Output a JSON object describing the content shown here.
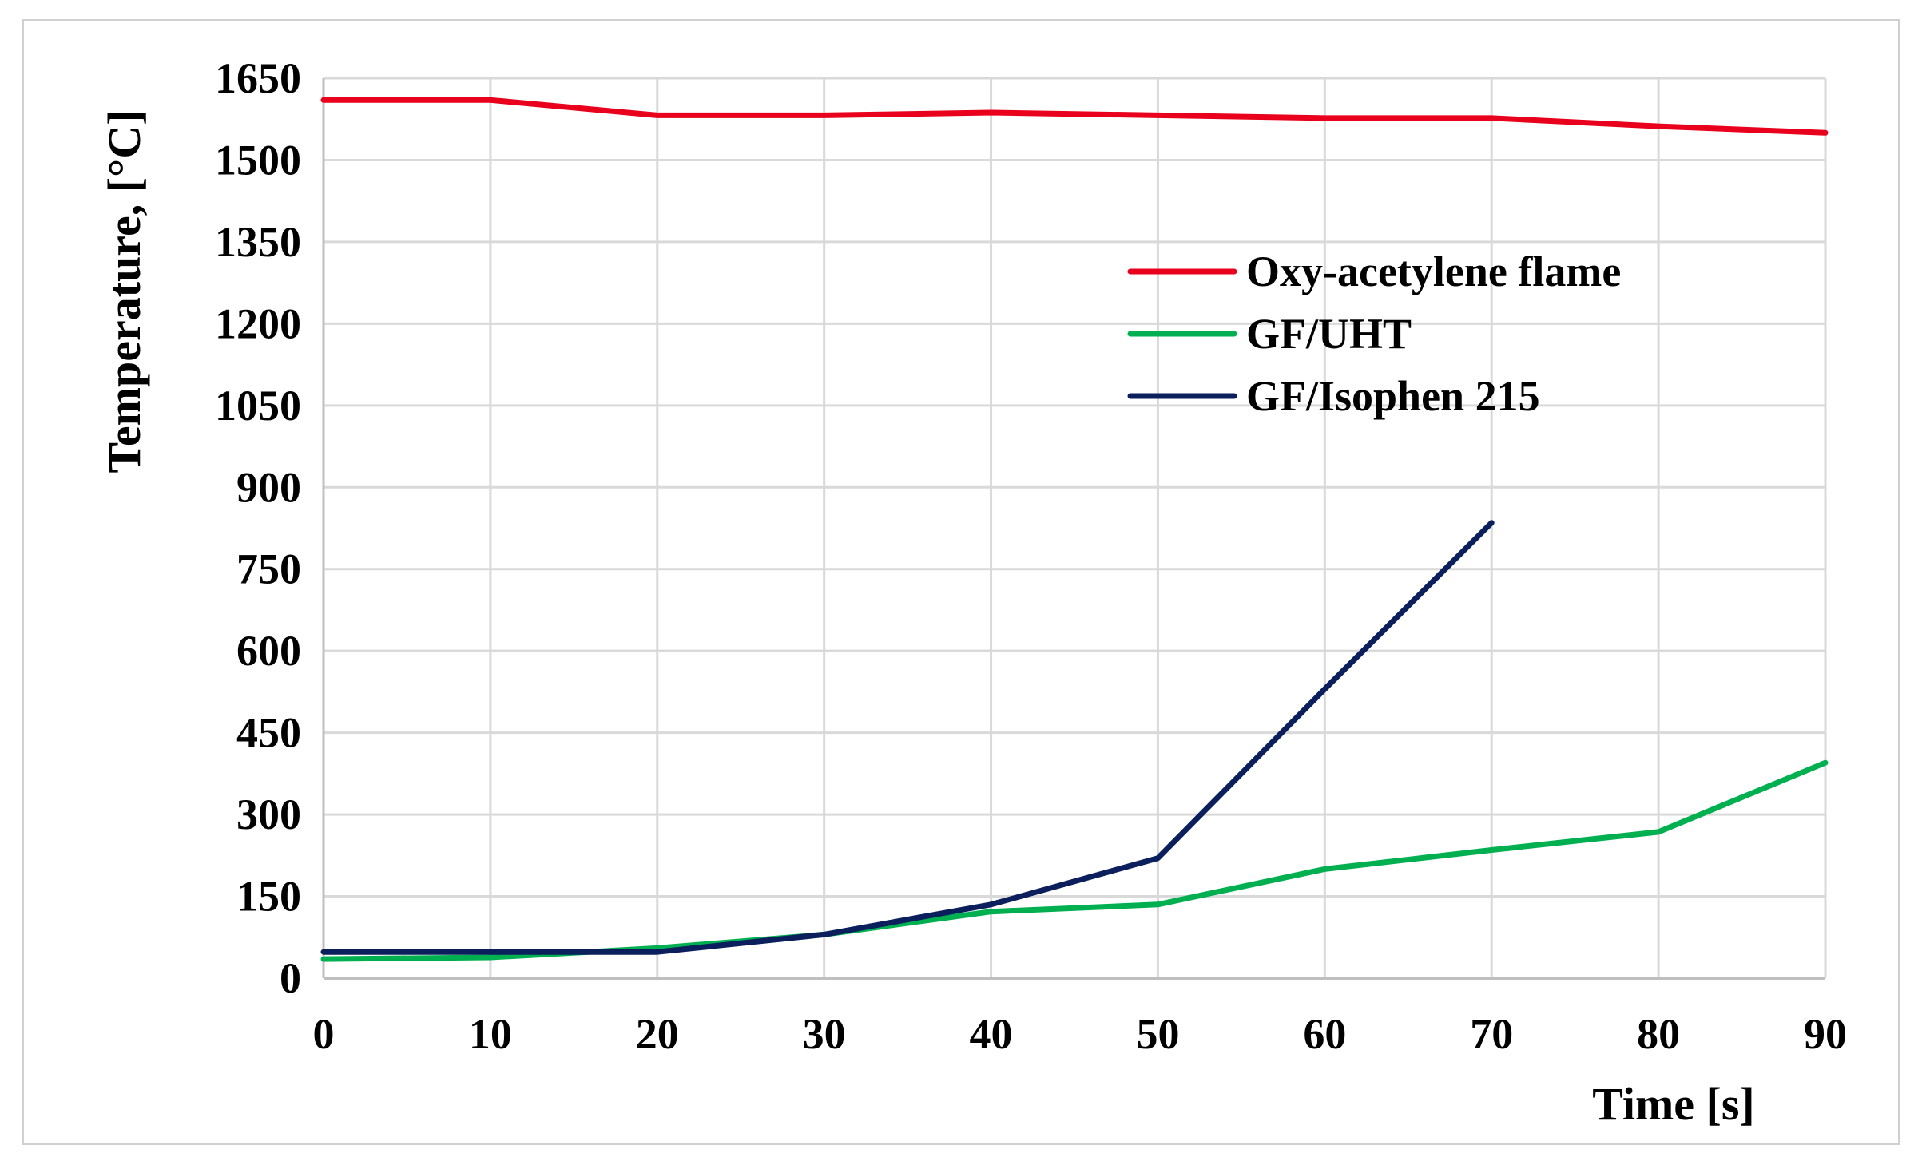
{
  "chart_data": {
    "type": "line",
    "title": "",
    "xlabel": "Time [s]",
    "ylabel": "Temperature, [°C]",
    "x": [
      0,
      10,
      20,
      30,
      40,
      50,
      60,
      70,
      80,
      90
    ],
    "xlim": [
      0,
      90
    ],
    "ylim": [
      0,
      1650
    ],
    "x_ticks": [
      0,
      10,
      20,
      30,
      40,
      50,
      60,
      70,
      80,
      90
    ],
    "y_ticks": [
      0,
      150,
      300,
      450,
      600,
      750,
      900,
      1050,
      1200,
      1350,
      1500,
      1650
    ],
    "grid": true,
    "legend_position": "center-right",
    "series": [
      {
        "name": "Oxy-acetylene flame",
        "color": "#e8001c",
        "values": [
          1610,
          1610,
          1582,
          1582,
          1587,
          1582,
          1577,
          1577,
          1562,
          1550
        ]
      },
      {
        "name": "GF/UHT",
        "color": "#00b050",
        "values": [
          35,
          38,
          55,
          80,
          122,
          135,
          200,
          235,
          268,
          395
        ]
      },
      {
        "name": "GF/Isophen 215",
        "color": "#0b1f5c",
        "values": [
          48,
          48,
          48,
          80,
          135,
          220,
          530,
          835,
          null,
          null
        ]
      }
    ]
  }
}
